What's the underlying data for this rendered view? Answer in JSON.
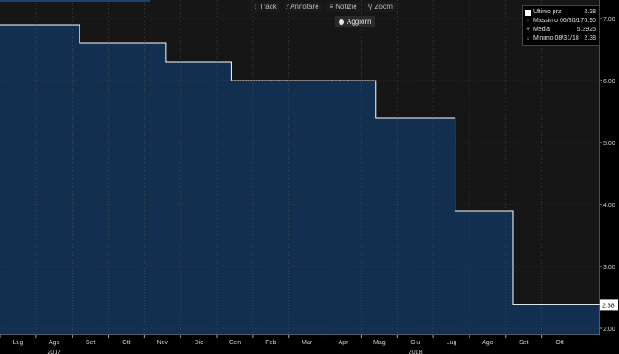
{
  "toolbar": {
    "items": [
      {
        "icon": "track-icon",
        "glyph": "↕",
        "label": "Track"
      },
      {
        "icon": "annotate-icon",
        "glyph": "∕",
        "label": "Annotare"
      },
      {
        "icon": "news-icon",
        "glyph": "≡",
        "label": "Notizie"
      },
      {
        "icon": "zoom-icon",
        "glyph": "⚲",
        "label": "Zoom"
      }
    ],
    "refresh_label": "Aggiorn"
  },
  "legend": {
    "rows": [
      {
        "label": "Ultimo prz",
        "value": "2.38"
      },
      {
        "label": "Massimo 06/30/17",
        "value": "6.90"
      },
      {
        "label": "Media",
        "value": "5.3925"
      },
      {
        "label": "Minimo 08/31/18",
        "value": "2.38"
      }
    ]
  },
  "colors": {
    "background": "#000000",
    "plot_background": "#161616",
    "area_fill": "#132f50",
    "line": "#ffffff",
    "grid": "#555555"
  },
  "chart_data": {
    "type": "area",
    "x_labels": [
      "Lug",
      "Ago",
      "Set",
      "Ott",
      "Nov",
      "Dic",
      "Gen",
      "Feb",
      "Mar",
      "Apr",
      "Mag",
      "Giu",
      "Lug",
      "Ago",
      "Set",
      "Ott"
    ],
    "years": [
      {
        "label": "2017",
        "month": 1
      },
      {
        "label": "2018",
        "month": 11
      }
    ],
    "x_range": [
      0,
      16.6
    ],
    "yticks": [
      2.0,
      3.0,
      4.0,
      5.0,
      6.0,
      7.0
    ],
    "ylim": [
      1.9,
      7.3
    ],
    "series": [
      {
        "steps": [
          [
            0,
            6.9
          ],
          [
            2.2,
            6.9
          ],
          [
            2.2,
            6.6
          ],
          [
            4.6,
            6.6
          ],
          [
            4.6,
            6.3
          ],
          [
            6.4,
            6.3
          ],
          [
            6.4,
            6.0
          ],
          [
            10.4,
            6.0
          ],
          [
            10.4,
            5.4
          ],
          [
            12.6,
            5.4
          ],
          [
            12.6,
            3.9
          ],
          [
            14.2,
            3.9
          ],
          [
            14.2,
            2.38
          ],
          [
            16.6,
            2.38
          ]
        ]
      }
    ],
    "last_value_label": "2.38",
    "grid": true
  }
}
